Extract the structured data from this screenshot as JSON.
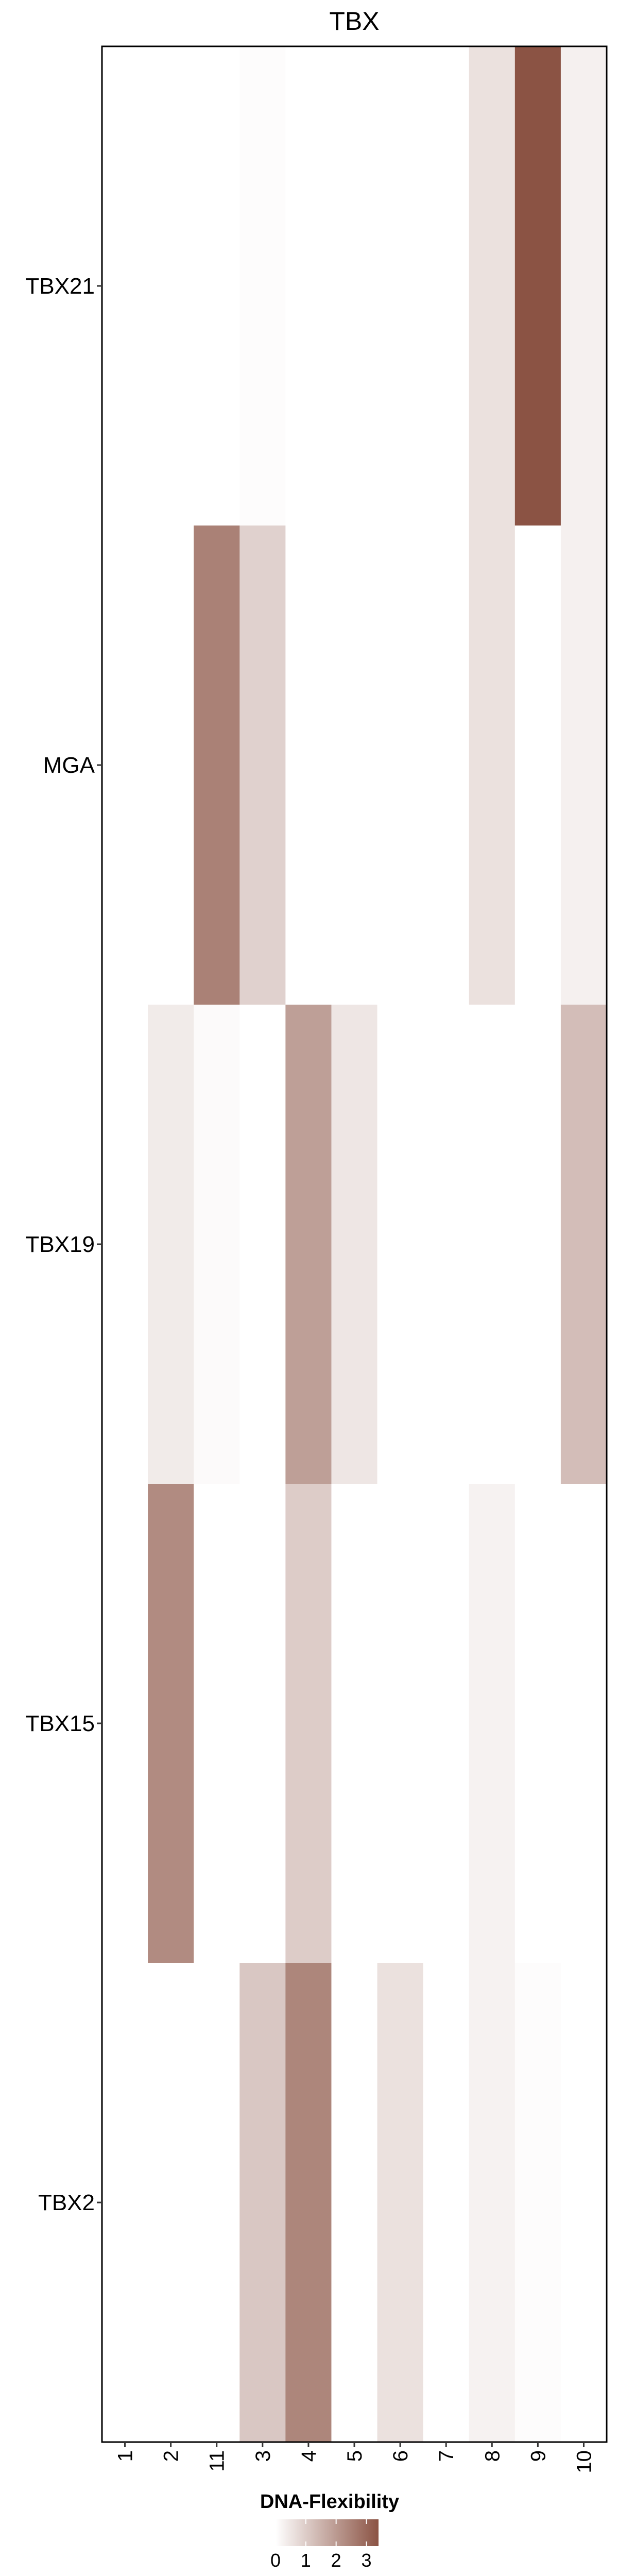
{
  "chart_data": {
    "type": "heatmap",
    "title": "TBX",
    "x_categories": [
      "1",
      "2",
      "11",
      "3",
      "4",
      "5",
      "6",
      "7",
      "8",
      "9",
      "10"
    ],
    "y_categories": [
      "TBX21",
      "MGA",
      "TBX19",
      "TBX15",
      "TBX2"
    ],
    "values": [
      [
        0.0,
        0.0,
        0.0,
        0.05,
        0.0,
        0.0,
        0.0,
        0.0,
        0.6,
        3.4,
        0.3
      ],
      [
        0.0,
        0.0,
        2.5,
        0.9,
        0.0,
        0.0,
        0.0,
        0.0,
        0.6,
        0.0,
        0.3
      ],
      [
        0.0,
        0.4,
        0.1,
        0.0,
        1.9,
        0.5,
        0.0,
        0.0,
        0.0,
        0.0,
        1.3
      ],
      [
        0.0,
        2.3,
        0.0,
        0.0,
        1.0,
        0.0,
        0.0,
        0.0,
        0.25,
        0.0,
        0.0
      ],
      [
        0.0,
        0.0,
        0.0,
        1.1,
        2.4,
        0.0,
        0.6,
        0.0,
        0.25,
        0.05,
        0.0
      ]
    ],
    "legend": {
      "title": "DNA-Flexibility",
      "ticks": [
        0,
        1,
        2,
        3
      ],
      "range": [
        0,
        3.4
      ],
      "color_low": "#ffffff",
      "color_high": "#8b5344",
      "placement": "bottom"
    }
  }
}
